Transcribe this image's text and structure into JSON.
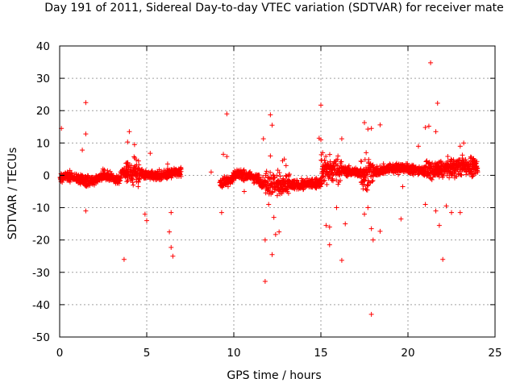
{
  "chart_data": {
    "type": "scatter",
    "title": "Day 191 of 2011, Sidereal Day-to-day VTEC variation (SDTVAR) for receiver mate",
    "xlabel": "GPS time / hours",
    "ylabel": "SDTVAR / TECUs",
    "xlim": [
      0,
      25
    ],
    "ylim": [
      -50,
      40
    ],
    "xticks": [
      "0",
      "5",
      "10",
      "15",
      "20",
      "25"
    ],
    "yticks": [
      "40",
      "30",
      "20",
      "10",
      "0",
      "-10",
      "-20",
      "-30",
      "-40",
      "-50"
    ],
    "grid": true,
    "marker": "+",
    "color": "#ff0000",
    "outliers": [
      [
        0.1,
        14.5
      ],
      [
        1.5,
        22.5
      ],
      [
        1.5,
        12.8
      ],
      [
        1.3,
        7.8
      ],
      [
        1.5,
        -11.0
      ],
      [
        3.7,
        -26.0
      ],
      [
        4.0,
        13.5
      ],
      [
        3.9,
        10.3
      ],
      [
        4.3,
        9.5
      ],
      [
        4.4,
        4.8
      ],
      [
        4.9,
        -12.0
      ],
      [
        5.0,
        -14.0
      ],
      [
        5.2,
        6.8
      ],
      [
        6.2,
        3.5
      ],
      [
        6.3,
        -17.5
      ],
      [
        6.4,
        -22.3
      ],
      [
        6.5,
        -25.0
      ],
      [
        6.4,
        -11.5
      ],
      [
        9.6,
        19.0
      ],
      [
        9.4,
        6.5
      ],
      [
        9.6,
        5.8
      ],
      [
        9.3,
        -11.5
      ],
      [
        10.6,
        -5.0
      ],
      [
        11.8,
        -20.0
      ],
      [
        11.8,
        -32.8
      ],
      [
        12.2,
        -24.5
      ],
      [
        12.1,
        18.7
      ],
      [
        12.2,
        15.5
      ],
      [
        12.3,
        -13.0
      ],
      [
        12.4,
        -18.3
      ],
      [
        12.6,
        -17.5
      ],
      [
        12.9,
        5.0
      ],
      [
        12.8,
        4.5
      ],
      [
        15.0,
        21.7
      ],
      [
        15.0,
        11.0
      ],
      [
        15.5,
        -21.5
      ],
      [
        15.5,
        -16.0
      ],
      [
        15.3,
        -15.5
      ],
      [
        15.9,
        -10.0
      ],
      [
        16.2,
        -26.3
      ],
      [
        16.2,
        11.3
      ],
      [
        16.4,
        -15.0
      ],
      [
        17.5,
        16.3
      ],
      [
        17.7,
        14.3
      ],
      [
        17.9,
        -43.0
      ],
      [
        17.9,
        -16.5
      ],
      [
        17.7,
        -10.0
      ],
      [
        18.4,
        15.6
      ],
      [
        18.4,
        -17.3
      ],
      [
        18.0,
        -20.0
      ],
      [
        19.6,
        -13.5
      ],
      [
        19.7,
        -3.5
      ],
      [
        21.3,
        34.8
      ],
      [
        21.2,
        15.2
      ],
      [
        21.0,
        14.8
      ],
      [
        21.7,
        22.3
      ],
      [
        21.6,
        13.5
      ],
      [
        22.0,
        -26.0
      ],
      [
        21.8,
        -15.5
      ],
      [
        21.6,
        -11.0
      ],
      [
        22.2,
        -9.5
      ],
      [
        22.5,
        -11.5
      ],
      [
        23.0,
        -11.5
      ],
      [
        23.0,
        9.0
      ],
      [
        23.2,
        10.0
      ],
      [
        21.0,
        -9.0
      ],
      [
        20.6,
        9.0
      ],
      [
        14.9,
        11.5
      ],
      [
        13.0,
        3.0
      ],
      [
        12.0,
        -9.0
      ],
      [
        12.1,
        6.0
      ],
      [
        11.7,
        11.3
      ],
      [
        17.6,
        7.0
      ],
      [
        17.5,
        -12.0
      ],
      [
        17.9,
        14.5
      ],
      [
        15.1,
        7.0
      ],
      [
        8.7,
        1.0
      ]
    ]
  }
}
